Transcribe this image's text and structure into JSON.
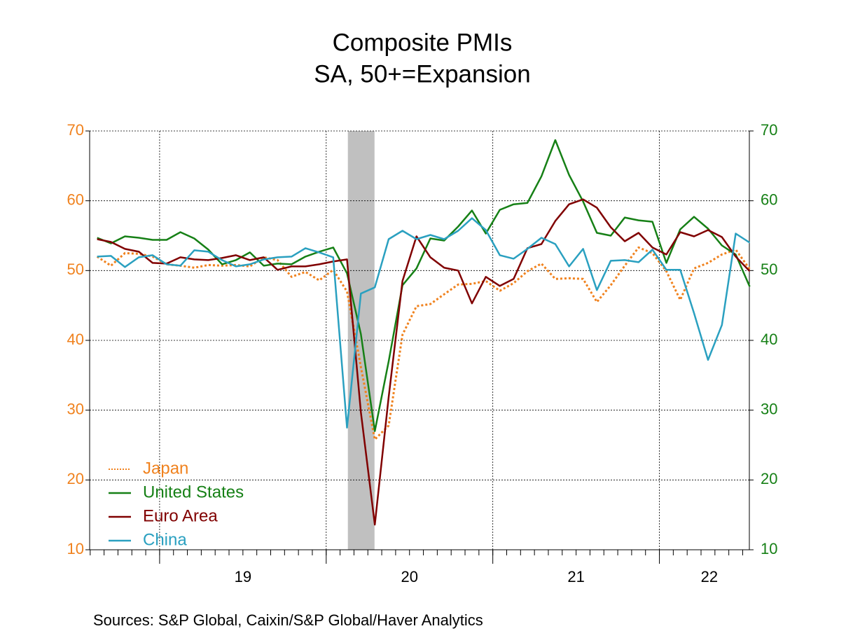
{
  "chart_data": {
    "type": "line",
    "title": "Composite PMIs",
    "subtitle": "SA, 50+=Expansion",
    "source": "Sources:  S&P Global, Caixin/S&P Global/Haver Analytics",
    "x": [
      2018.625,
      2018.708,
      2018.792,
      2018.875,
      2018.958,
      2019.042,
      2019.125,
      2019.208,
      2019.292,
      2019.375,
      2019.458,
      2019.542,
      2019.625,
      2019.708,
      2019.792,
      2019.875,
      2019.958,
      2020.042,
      2020.125,
      2020.208,
      2020.292,
      2020.375,
      2020.458,
      2020.542,
      2020.625,
      2020.708,
      2020.792,
      2020.875,
      2020.958,
      2021.042,
      2021.125,
      2021.208,
      2021.292,
      2021.375,
      2021.458,
      2021.542,
      2021.625,
      2021.708,
      2021.792,
      2021.875,
      2021.958,
      2022.042,
      2022.125,
      2022.208,
      2022.292,
      2022.375,
      2022.458,
      2022.542
    ],
    "xlim": [
      2018.58,
      2022.54
    ],
    "xticks": [
      {
        "value": 2019.5,
        "label": "19"
      },
      {
        "value": 2020.5,
        "label": "20"
      },
      {
        "value": 2021.5,
        "label": "21"
      },
      {
        "value": 2022.3,
        "label": "22"
      }
    ],
    "xgrid": [
      2019,
      2020,
      2021,
      2022
    ],
    "ylim": [
      10,
      70
    ],
    "yticks": [
      10,
      20,
      30,
      40,
      50,
      60,
      70
    ],
    "ytick_color": "#f0821e",
    "y2lim": [
      10,
      70
    ],
    "y2ticks": [
      10,
      20,
      30,
      40,
      50,
      60,
      70
    ],
    "y2tick_color": "#168016",
    "grid": true,
    "shaded_range": [
      2020.13,
      2020.29
    ],
    "shade_color": "#c0c0c0",
    "legend": "lower left",
    "series": [
      {
        "name": "Japan",
        "color": "#f0821e",
        "dash": "dotted",
        "values": [
          52.0,
          50.7,
          52.5,
          52.4,
          52.0,
          50.9,
          50.7,
          50.4,
          50.8,
          50.7,
          50.8,
          50.6,
          51.9,
          51.5,
          49.1,
          49.8,
          48.6,
          50.1,
          47.0,
          36.2,
          25.8,
          27.8,
          40.8,
          44.9,
          45.2,
          46.6,
          48.0,
          48.1,
          48.5,
          47.1,
          48.2,
          49.9,
          51.0,
          48.8,
          48.9,
          48.8,
          45.5,
          47.9,
          50.7,
          53.3,
          52.5,
          49.9,
          45.8,
          50.3,
          51.1,
          52.3,
          53.0,
          50.2
        ]
      },
      {
        "name": "United States",
        "color": "#168016",
        "axis": "y2",
        "values": [
          54.7,
          53.9,
          54.9,
          54.7,
          54.4,
          54.4,
          55.5,
          54.6,
          53.0,
          50.9,
          51.5,
          52.6,
          50.7,
          51.0,
          50.9,
          52.0,
          52.7,
          53.3,
          49.6,
          40.9,
          27.0,
          37.0,
          47.9,
          50.3,
          54.6,
          54.3,
          56.3,
          58.6,
          55.3,
          58.7,
          59.5,
          59.7,
          63.5,
          68.7,
          63.7,
          59.9,
          55.4,
          55.0,
          57.6,
          57.2,
          57.0,
          51.1,
          55.9,
          57.7,
          56.0,
          53.6,
          52.3,
          47.7
        ]
      },
      {
        "name": "Euro Area",
        "color": "#800000",
        "values": [
          54.5,
          54.1,
          53.1,
          52.7,
          51.1,
          51.0,
          51.9,
          51.6,
          51.5,
          51.8,
          52.2,
          51.5,
          51.9,
          50.1,
          50.6,
          50.6,
          50.9,
          51.3,
          51.6,
          29.7,
          13.6,
          31.9,
          48.5,
          54.9,
          51.9,
          50.4,
          50.0,
          45.3,
          49.1,
          47.8,
          48.8,
          53.2,
          53.8,
          57.1,
          59.5,
          60.2,
          59.0,
          56.2,
          54.2,
          55.4,
          53.3,
          52.3,
          55.5,
          54.9,
          55.8,
          54.8,
          52.0,
          49.9
        ]
      },
      {
        "name": "China",
        "color": "#2aa0c0",
        "values": [
          52.0,
          52.1,
          50.5,
          51.9,
          52.2,
          50.9,
          50.7,
          52.9,
          52.7,
          51.5,
          50.6,
          50.9,
          51.6,
          51.9,
          52.0,
          53.2,
          52.6,
          51.9,
          27.5,
          46.7,
          47.6,
          54.5,
          55.7,
          54.5,
          55.1,
          54.5,
          55.7,
          57.5,
          55.8,
          52.2,
          51.7,
          53.1,
          54.7,
          53.8,
          50.6,
          53.1,
          47.2,
          51.4,
          51.5,
          51.2,
          53.0,
          50.1,
          50.1,
          43.9,
          37.2,
          42.2,
          55.3,
          54.0
        ]
      }
    ]
  }
}
